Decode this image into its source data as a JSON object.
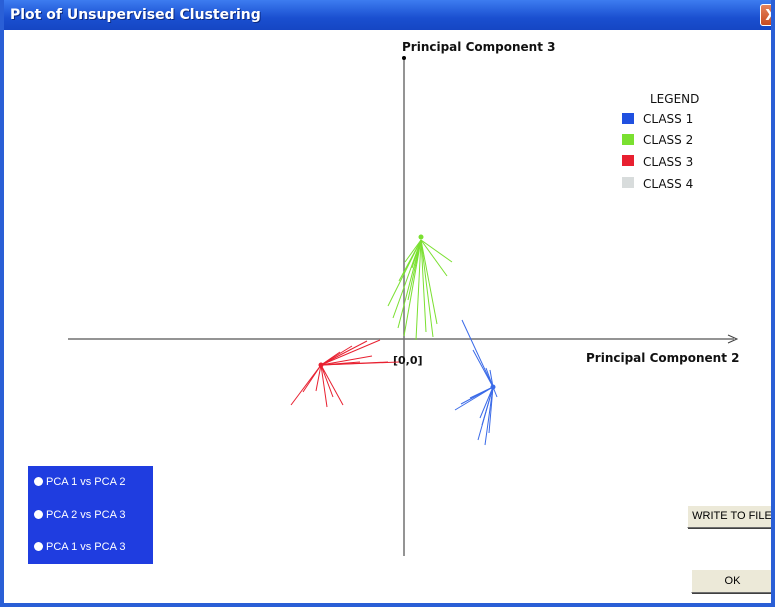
{
  "window": {
    "title": "Plot of Unsupervised Clustering",
    "close_label": "X"
  },
  "plot": {
    "y_axis_label": "Principal Component 3",
    "x_axis_label": "Principal Component 2",
    "origin_label": "[0,0]"
  },
  "legend": {
    "title": "LEGEND",
    "items": [
      {
        "label": "CLASS 1",
        "color": "#2050e0"
      },
      {
        "label": "CLASS 2",
        "color": "#7ae030"
      },
      {
        "label": "CLASS 3",
        "color": "#e82030"
      },
      {
        "label": "CLASS 4",
        "color": "#d8dcdc"
      }
    ]
  },
  "view_options": [
    {
      "label": "PCA 1  vs PCA 2"
    },
    {
      "label": "PCA 2  vs PCA 3"
    },
    {
      "label": "PCA 1  vs PCA 3"
    }
  ],
  "buttons": {
    "write_to_file": "WRITE TO FILE",
    "ok": "OK"
  }
}
